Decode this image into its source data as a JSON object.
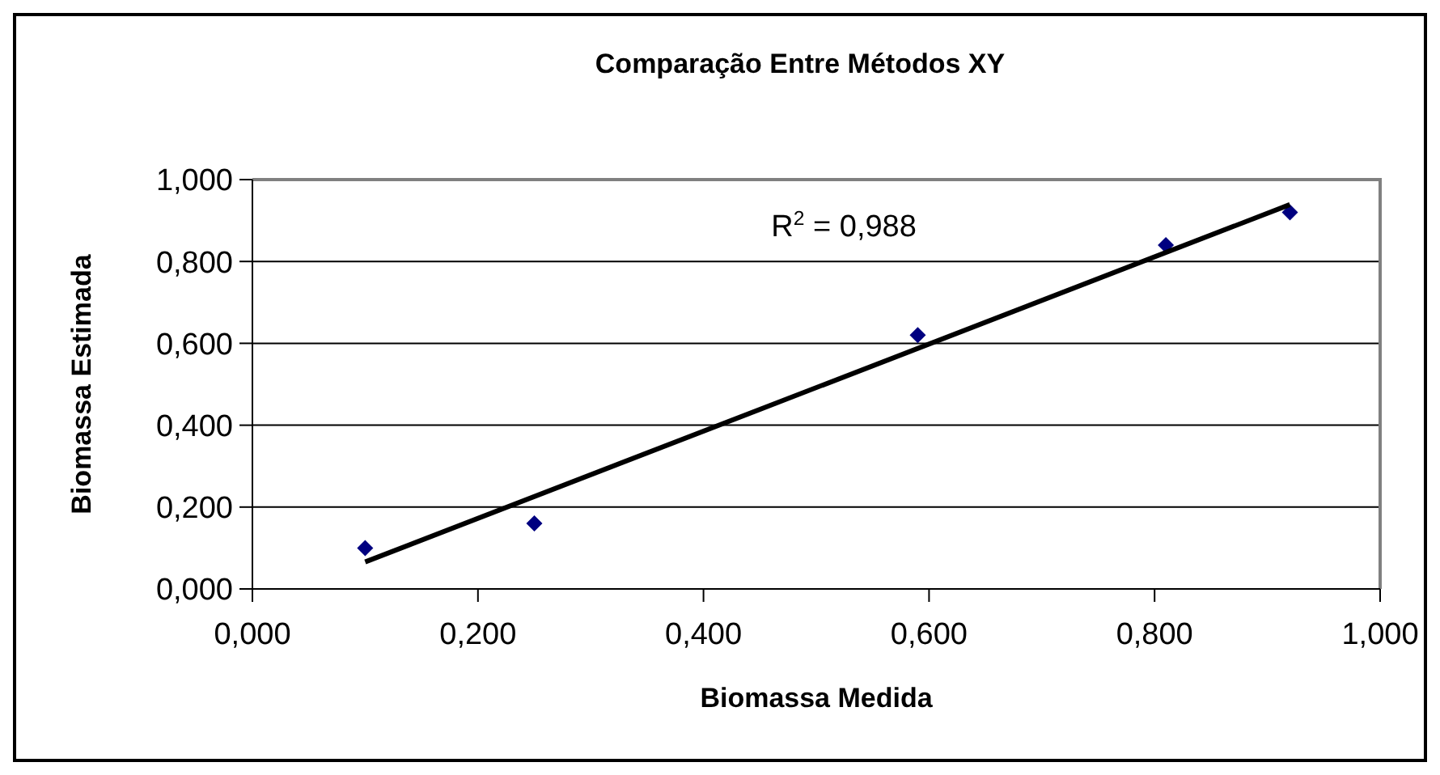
{
  "chart_data": {
    "type": "scatter",
    "title": "Comparação Entre Métodos XY",
    "xlabel": "Biomassa Medida",
    "ylabel": "Biomassa Estimada",
    "series": [
      {
        "color": "#000080",
        "marker": "diamond",
        "x": [
          0.1,
          0.25,
          0.59,
          0.81,
          0.92
        ],
        "values": [
          0.1,
          0.16,
          0.62,
          0.84,
          0.92
        ]
      },
      {
        "type": "line",
        "color": "#000000",
        "marker": "none",
        "line_style": "solid",
        "x": [
          0.1,
          0.92
        ],
        "values": [
          0.066,
          0.939
        ]
      }
    ],
    "xlim": [
      0,
      1
    ],
    "ylim": [
      0,
      1
    ],
    "xticks": [
      {
        "value": 0,
        "label": "0,000"
      },
      {
        "value": 0.2,
        "label": "0,200"
      },
      {
        "value": 0.4,
        "label": "0,400"
      },
      {
        "value": 0.6,
        "label": "0,600"
      },
      {
        "value": 0.8,
        "label": "0,800"
      },
      {
        "value": 1,
        "label": "1,000"
      }
    ],
    "yticks": [
      {
        "value": 0,
        "label": "0,000"
      },
      {
        "value": 0.2,
        "label": "0,200"
      },
      {
        "value": 0.4,
        "label": "0,400"
      },
      {
        "value": 0.6,
        "label": "0,600"
      },
      {
        "value": 0.8,
        "label": "0,800"
      },
      {
        "value": 1,
        "label": "1,000"
      }
    ],
    "grid": "y",
    "annotations": [
      "R$^{2}$ = 0,988"
    ]
  }
}
